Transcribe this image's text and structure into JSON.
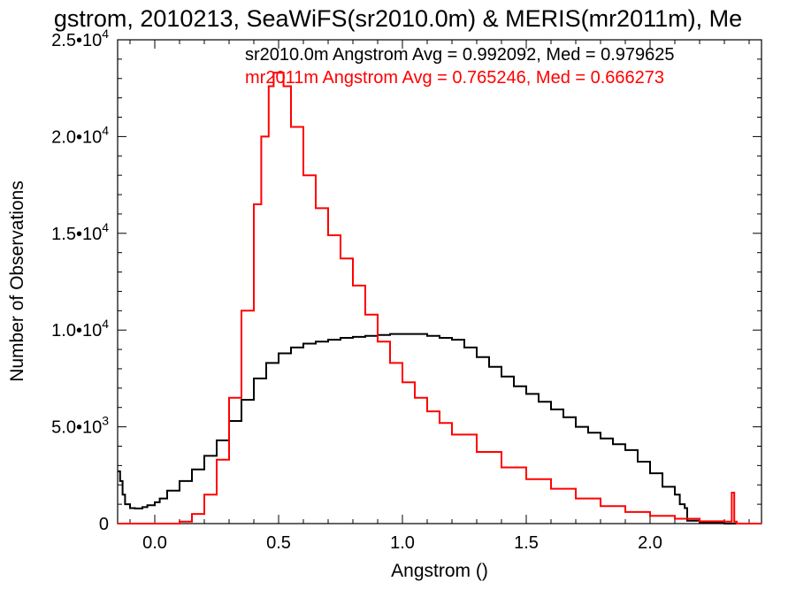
{
  "chart_data": {
    "type": "line",
    "title": "gstrom, 2010213, SeaWiFS(sr2010.0m) & MERIS(mr2011m), Me",
    "xlabel": "Angstrom ()",
    "ylabel": "Number of Observations",
    "xlim": [
      -0.15,
      2.45
    ],
    "ylim": [
      0,
      25000
    ],
    "x_ticks": [
      "0.0",
      "0.5",
      "1.0",
      "1.5",
      "2.0"
    ],
    "y_ticks": [
      {
        "base": "0",
        "exp": ""
      },
      {
        "base": "5.0•10",
        "exp": "3"
      },
      {
        "base": "1.0•10",
        "exp": "4"
      },
      {
        "base": "1.5•10",
        "exp": "4"
      },
      {
        "base": "2.0•10",
        "exp": "4"
      },
      {
        "base": "2.5•10",
        "exp": "4"
      }
    ],
    "annotations": [
      {
        "text": "sr2010.0m Angstrom Avg = 0.992092, Med = 0.979625",
        "color": "#000000"
      },
      {
        "text": "mr2011m Angstrom Avg = 0.765246, Med = 0.666273",
        "color": "#ff0000"
      }
    ],
    "series": [
      {
        "color": "#000000",
        "x": [
          -0.15,
          -0.14,
          -0.13,
          -0.12,
          -0.1,
          -0.08,
          -0.05,
          -0.03,
          0.0,
          0.02,
          0.05,
          0.1,
          0.15,
          0.2,
          0.25,
          0.3,
          0.35,
          0.4,
          0.45,
          0.5,
          0.55,
          0.6,
          0.65,
          0.7,
          0.75,
          0.8,
          0.85,
          0.9,
          0.95,
          1.0,
          1.05,
          1.1,
          1.15,
          1.2,
          1.25,
          1.3,
          1.35,
          1.4,
          1.45,
          1.5,
          1.55,
          1.6,
          1.65,
          1.7,
          1.75,
          1.8,
          1.85,
          1.9,
          1.95,
          2.0,
          2.05,
          2.1,
          2.12,
          2.14,
          2.15,
          2.2,
          2.3,
          2.35
        ],
        "y": [
          2700,
          2200,
          1500,
          1000,
          800,
          780,
          850,
          950,
          1100,
          1300,
          1700,
          2200,
          2800,
          3500,
          4300,
          5300,
          6400,
          7500,
          8300,
          8800,
          9100,
          9300,
          9400,
          9500,
          9600,
          9650,
          9700,
          9750,
          9800,
          9800,
          9800,
          9700,
          9600,
          9500,
          9100,
          8600,
          8100,
          7600,
          7100,
          6700,
          6300,
          5900,
          5500,
          5000,
          4700,
          4400,
          4100,
          3800,
          3200,
          2600,
          1900,
          1500,
          1000,
          800,
          150,
          50,
          0,
          0
        ]
      },
      {
        "color": "#ff0000",
        "x": [
          -0.15,
          0.05,
          0.1,
          0.15,
          0.2,
          0.25,
          0.3,
          0.35,
          0.4,
          0.43,
          0.46,
          0.48,
          0.5,
          0.52,
          0.55,
          0.6,
          0.65,
          0.7,
          0.75,
          0.8,
          0.85,
          0.9,
          0.95,
          1.0,
          1.05,
          1.1,
          1.15,
          1.2,
          1.3,
          1.4,
          1.5,
          1.6,
          1.7,
          1.8,
          1.9,
          2.0,
          2.1,
          2.2,
          2.3,
          2.33,
          2.34,
          2.35,
          2.45
        ],
        "y": [
          0,
          0,
          100,
          500,
          1500,
          3300,
          6500,
          11000,
          16500,
          20000,
          22600,
          23300,
          23300,
          22600,
          20500,
          18000,
          16300,
          14900,
          13700,
          12300,
          10800,
          9400,
          8300,
          7300,
          6500,
          5800,
          5200,
          4600,
          3700,
          2900,
          2300,
          1800,
          1300,
          900,
          600,
          400,
          250,
          120,
          100,
          1600,
          100,
          0,
          0
        ]
      }
    ]
  }
}
